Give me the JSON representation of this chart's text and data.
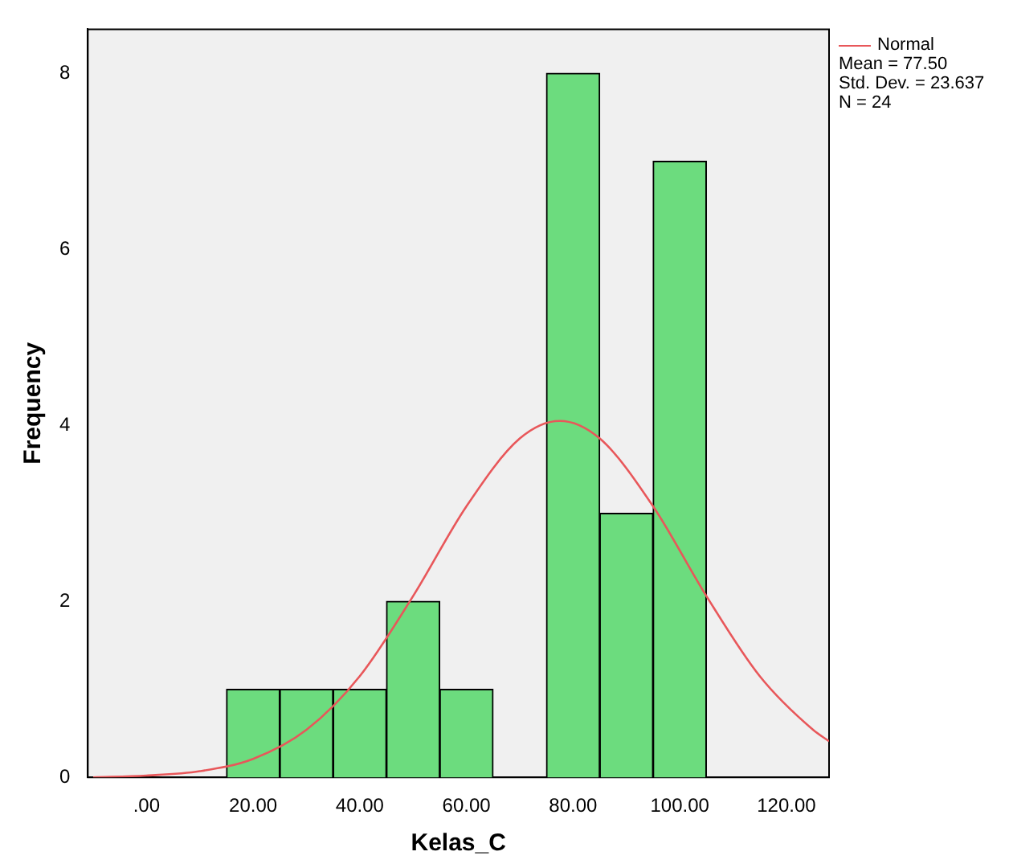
{
  "chart_data": {
    "type": "histogram",
    "xlabel": "Kelas_C",
    "ylabel": "Frequency",
    "bins": [
      15,
      25,
      35,
      45,
      55,
      65,
      75,
      85,
      95,
      105
    ],
    "values": [
      1,
      1,
      1,
      2,
      1,
      0,
      8,
      3,
      7
    ],
    "color": "#6cdc7e",
    "series": [
      {
        "name": "Normal",
        "type": "line",
        "color": "#e8575a",
        "x": [
          -10,
          0,
          10,
          20,
          30,
          40,
          50,
          60,
          70,
          77.5,
          85,
          95,
          105,
          115,
          125,
          128
        ],
        "values": [
          0,
          0.02,
          0.07,
          0.21,
          0.54,
          1.15,
          2.06,
          3.08,
          3.85,
          4.05,
          3.85,
          3.08,
          2.06,
          1.15,
          0.54,
          0.41
        ]
      }
    ],
    "xlim": [
      -11,
      128
    ],
    "xticks": [
      {
        "value": 0,
        "label": ".00"
      },
      {
        "value": 20,
        "label": "20.00"
      },
      {
        "value": 40,
        "label": "40.00"
      },
      {
        "value": 60,
        "label": "60.00"
      },
      {
        "value": 80,
        "label": "80.00"
      },
      {
        "value": 100,
        "label": "100.00"
      },
      {
        "value": 120,
        "label": "120.00"
      }
    ],
    "ylim": [
      0,
      8.5
    ],
    "yticks": [
      0,
      2,
      4,
      6,
      8
    ],
    "grid": false,
    "legend": "top right",
    "marker": "none",
    "annotations": [
      "Mean = 77.50",
      "Std. Dev. = 23.637",
      "N = 24"
    ]
  }
}
